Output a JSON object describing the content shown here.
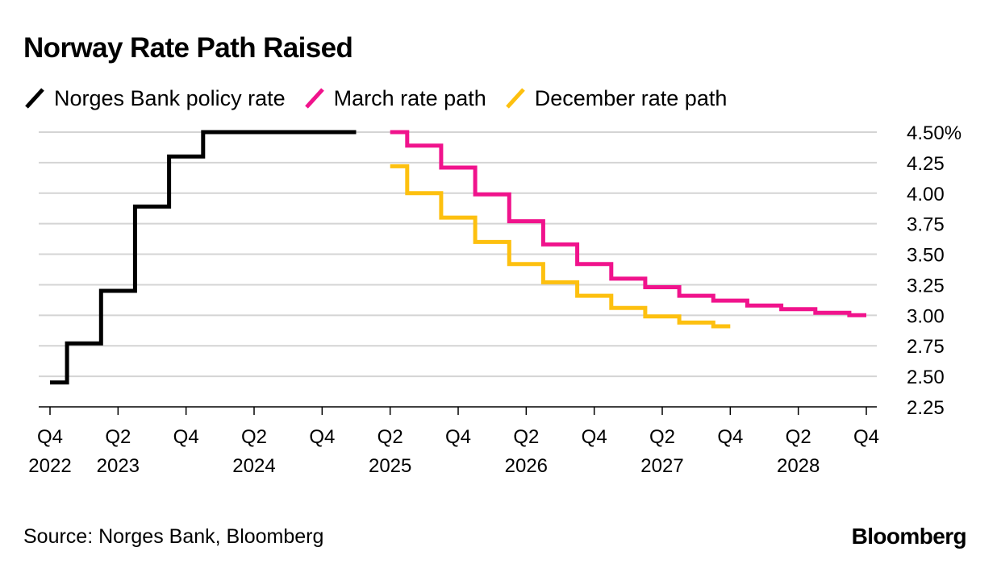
{
  "title": "Norway Rate Path Raised",
  "source": "Source: Norges Bank, Bloomberg",
  "brand": "Bloomberg",
  "chart_data": {
    "type": "line",
    "step": true,
    "title": "Norway Rate Path Raised",
    "ylabel": "",
    "xlabel": "",
    "ylim": [
      2.25,
      4.5
    ],
    "y_axis_side": "right",
    "y_ticks": [
      4.5,
      4.25,
      4.0,
      3.75,
      3.5,
      3.25,
      3.0,
      2.75,
      2.5,
      2.25
    ],
    "y_tick_labels": [
      "4.50%",
      "4.25",
      "4.00",
      "3.75",
      "3.50",
      "3.25",
      "3.00",
      "2.75",
      "2.50",
      "2.25"
    ],
    "x_ticks": [
      {
        "q": "Q4",
        "year": "2022",
        "t": 0
      },
      {
        "q": "Q2",
        "year": "2023",
        "t": 2
      },
      {
        "q": "Q4",
        "year": "",
        "t": 4
      },
      {
        "q": "Q2",
        "year": "2024",
        "t": 6
      },
      {
        "q": "Q4",
        "year": "",
        "t": 8
      },
      {
        "q": "Q2",
        "year": "2025",
        "t": 10
      },
      {
        "q": "Q4",
        "year": "",
        "t": 12
      },
      {
        "q": "Q2",
        "year": "2026",
        "t": 14
      },
      {
        "q": "Q4",
        "year": "",
        "t": 16
      },
      {
        "q": "Q2",
        "year": "2027",
        "t": 18
      },
      {
        "q": "Q4",
        "year": "",
        "t": 20
      },
      {
        "q": "Q2",
        "year": "2028",
        "t": 22
      },
      {
        "q": "Q4",
        "year": "",
        "t": 24
      }
    ],
    "x_unit": "quarters since Q4 2022",
    "grid": true,
    "legend_position": "top-left",
    "series": [
      {
        "name": "Norges Bank policy rate",
        "color": "#000000",
        "x": [
          0,
          0.5,
          0.5,
          1.5,
          1.5,
          2.5,
          2.5,
          3.5,
          3.5,
          4.5,
          4.5,
          9.0
        ],
        "y": [
          2.45,
          2.45,
          2.77,
          2.77,
          3.2,
          3.2,
          3.89,
          3.89,
          4.3,
          4.3,
          4.5,
          4.5
        ]
      },
      {
        "name": "March rate path",
        "color": "#f0138c",
        "x": [
          10,
          10.5,
          10.5,
          11.5,
          11.5,
          12.5,
          12.5,
          13.5,
          13.5,
          14.5,
          14.5,
          15.5,
          15.5,
          16.5,
          16.5,
          17.5,
          17.5,
          18.5,
          18.5,
          19.5,
          19.5,
          20.5,
          20.5,
          21.5,
          21.5,
          22.5,
          22.5,
          23.5,
          23.5,
          24.0
        ],
        "y": [
          4.5,
          4.5,
          4.39,
          4.39,
          4.21,
          4.21,
          3.99,
          3.99,
          3.77,
          3.77,
          3.58,
          3.58,
          3.42,
          3.42,
          3.3,
          3.3,
          3.23,
          3.23,
          3.16,
          3.16,
          3.12,
          3.12,
          3.08,
          3.08,
          3.05,
          3.05,
          3.02,
          3.02,
          3.0,
          3.0
        ]
      },
      {
        "name": "December rate path",
        "color": "#fdc00f",
        "x": [
          10,
          10.5,
          10.5,
          11.5,
          11.5,
          12.5,
          12.5,
          13.5,
          13.5,
          14.5,
          14.5,
          15.5,
          15.5,
          16.5,
          16.5,
          17.5,
          17.5,
          18.5,
          18.5,
          19.5,
          19.5,
          20.0
        ],
        "y": [
          4.22,
          4.22,
          4.0,
          4.0,
          3.8,
          3.8,
          3.6,
          3.6,
          3.42,
          3.42,
          3.27,
          3.27,
          3.16,
          3.16,
          3.06,
          3.06,
          2.99,
          2.99,
          2.94,
          2.94,
          2.91,
          2.91
        ]
      }
    ]
  }
}
